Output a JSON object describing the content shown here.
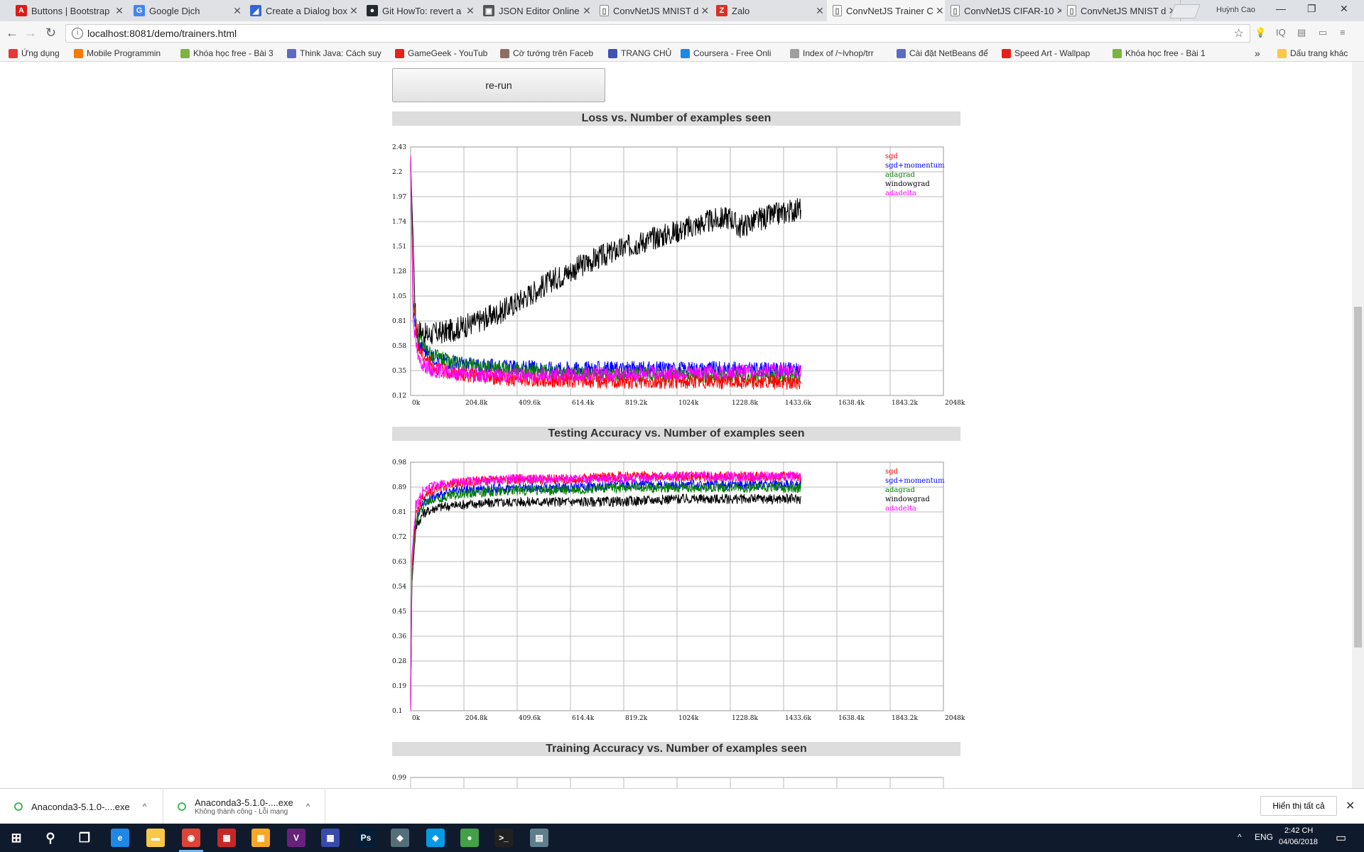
{
  "tabs": [
    {
      "label": "Buttons | Bootstrap",
      "icon": "angular-icon",
      "color": "#dd1b16",
      "glyph": "A",
      "active": false
    },
    {
      "label": "Google Dịch",
      "icon": "google-translate-icon",
      "color": "#4285f4",
      "glyph": "G",
      "active": false
    },
    {
      "label": "Create a Dialog box",
      "icon": "dialog-icon",
      "color": "#3367d6",
      "glyph": "◢",
      "active": false
    },
    {
      "label": "Git HowTo: revert a",
      "icon": "github-icon",
      "color": "#24292e",
      "glyph": "●",
      "active": false
    },
    {
      "label": "JSON Editor Online",
      "icon": "json-editor-icon",
      "color": "#555555",
      "glyph": "▣",
      "active": false
    },
    {
      "label": "ConvNetJS MNIST d",
      "icon": "page-icon",
      "color": "#ffffff",
      "glyph": "▯",
      "active": false
    },
    {
      "label": "Zalo",
      "icon": "zalo-icon",
      "color": "#d93025",
      "glyph": "Z",
      "active": false
    },
    {
      "label": "ConvNetJS Trainer C",
      "icon": "page-icon",
      "color": "#ffffff",
      "glyph": "▯",
      "active": true
    },
    {
      "label": "ConvNetJS CIFAR-10",
      "icon": "page-icon",
      "color": "#ffffff",
      "glyph": "▯",
      "active": false
    },
    {
      "label": "ConvNetJS MNIST d",
      "icon": "page-icon",
      "color": "#ffffff",
      "glyph": "▯",
      "active": false
    }
  ],
  "tab_close": "✕",
  "profile_name": "Huỳnh Cao",
  "window_controls": {
    "minimize": "—",
    "maximize": "❐",
    "close": "✕"
  },
  "toolbar": {
    "back": "←",
    "forward": "→",
    "reload": "↻",
    "url": "localhost:8081/demo/trainers.html",
    "info": "i",
    "star": "☆"
  },
  "extensions": [
    "💡",
    "IQ",
    "▤",
    "▭",
    "≡"
  ],
  "bookmarks": [
    {
      "label": "Ứng dụng",
      "color": "#e53935"
    },
    {
      "label": "Mobile Programmin",
      "color": "#f57c00"
    },
    {
      "label": "Khóa học free - Bài 3",
      "color": "#7cb342"
    },
    {
      "label": "Think Java: Cách suy",
      "color": "#5c6bc0"
    },
    {
      "label": "GameGeek - YouTub",
      "color": "#e62117"
    },
    {
      "label": "Cờ tướng trên Faceb",
      "color": "#8d6e63"
    },
    {
      "label": "TRANG CHỦ",
      "color": "#3f51b5"
    },
    {
      "label": "Coursera - Free Onli",
      "color": "#1e88e5"
    },
    {
      "label": "Index of /~lvhop/trr",
      "color": "#9e9e9e"
    },
    {
      "label": "Cài đặt NetBeans để",
      "color": "#5c6bc0"
    },
    {
      "label": "Speed Art - Wallpap",
      "color": "#e62117"
    },
    {
      "label": "Khóa học free - Bài 1",
      "color": "#7cb342"
    },
    {
      "label": "Dấu trang khác",
      "color": "#f9c846"
    }
  ],
  "bookmarks_overflow": "»",
  "rerun_label": "re-run",
  "charts": [
    {
      "title": "Loss vs. Number of examples seen",
      "chart_data": {
        "type": "line",
        "title": "Loss vs. Number of examples seen",
        "x_ticks": [
          "0k",
          "204.8k",
          "409.6k",
          "614.4k",
          "819.2k",
          "1024k",
          "1228.8k",
          "1433.6k",
          "1638.4k",
          "1843.2k",
          "2048k"
        ],
        "xlim": [
          0,
          2048
        ],
        "ylim": [
          0.12,
          2.43
        ],
        "y_ticks": [
          "2.43",
          "2.2",
          "1.97",
          "1.74",
          "1.51",
          "1.28",
          "1.05",
          "0.81",
          "0.58",
          "0.35",
          "0.12"
        ],
        "grid": true,
        "legend_position": "top-right",
        "series": [
          {
            "name": "sgd",
            "color": "#ff0000",
            "x": [
              0,
              10,
              30,
              80,
              150,
              250,
              400,
              600,
              800,
              1000,
              1200,
              1400,
              1500
            ],
            "y": [
              2.35,
              1.0,
              0.55,
              0.4,
              0.33,
              0.3,
              0.27,
              0.26,
              0.25,
              0.25,
              0.25,
              0.24,
              0.24
            ]
          },
          {
            "name": "sgd+momentum",
            "color": "#0000ff",
            "x": [
              0,
              10,
              30,
              80,
              150,
              250,
              400,
              600,
              800,
              1000,
              1200,
              1400,
              1500
            ],
            "y": [
              2.35,
              0.9,
              0.6,
              0.48,
              0.43,
              0.4,
              0.38,
              0.37,
              0.37,
              0.37,
              0.37,
              0.36,
              0.36
            ]
          },
          {
            "name": "adagrad",
            "color": "#008000",
            "x": [
              0,
              10,
              30,
              80,
              150,
              250,
              400,
              600,
              800,
              1000,
              1200,
              1400,
              1500
            ],
            "y": [
              2.35,
              1.0,
              0.65,
              0.5,
              0.43,
              0.39,
              0.36,
              0.33,
              0.32,
              0.31,
              0.3,
              0.29,
              0.29
            ]
          },
          {
            "name": "windowgrad",
            "color": "#000000",
            "x": [
              0,
              20,
              60,
              150,
              250,
              350,
              450,
              550,
              700,
              850,
              1000,
              1150,
              1230,
              1260,
              1320,
              1400,
              1500
            ],
            "y": [
              2.3,
              0.75,
              0.68,
              0.72,
              0.8,
              0.9,
              1.05,
              1.2,
              1.38,
              1.52,
              1.63,
              1.74,
              1.78,
              1.68,
              1.74,
              1.8,
              1.86
            ]
          },
          {
            "name": "adadelta",
            "color": "#ff00ff",
            "x": [
              0,
              10,
              30,
              80,
              150,
              250,
              400,
              600,
              800,
              1000,
              1200,
              1400,
              1500
            ],
            "y": [
              2.35,
              0.8,
              0.45,
              0.36,
              0.33,
              0.31,
              0.31,
              0.31,
              0.32,
              0.33,
              0.34,
              0.35,
              0.35
            ]
          }
        ]
      }
    },
    {
      "title": "Testing Accuracy vs. Number of examples seen",
      "chart_data": {
        "type": "line",
        "title": "Testing Accuracy vs. Number of examples seen",
        "x_ticks": [
          "0k",
          "204.8k",
          "409.6k",
          "614.4k",
          "819.2k",
          "1024k",
          "1228.8k",
          "1433.6k",
          "1638.4k",
          "1843.2k",
          "2048k"
        ],
        "xlim": [
          0,
          2048
        ],
        "ylim": [
          0.1,
          0.98
        ],
        "y_ticks": [
          "0.98",
          "0.89",
          "0.81",
          "0.72",
          "0.63",
          "0.54",
          "0.45",
          "0.36",
          "0.28",
          "0.19",
          "0.1"
        ],
        "grid": true,
        "legend_position": "top-right",
        "series": [
          {
            "name": "sgd",
            "color": "#ff0000",
            "x": [
              0,
              5,
              20,
              50,
              100,
              200,
              400,
              600,
              800,
              1000,
              1200,
              1400,
              1500
            ],
            "y": [
              0.1,
              0.6,
              0.8,
              0.86,
              0.89,
              0.91,
              0.92,
              0.92,
              0.93,
              0.93,
              0.93,
              0.93,
              0.93
            ]
          },
          {
            "name": "sgd+momentum",
            "color": "#0000ff",
            "x": [
              0,
              5,
              20,
              50,
              100,
              200,
              400,
              600,
              800,
              1000,
              1200,
              1400,
              1500
            ],
            "y": [
              0.1,
              0.6,
              0.78,
              0.84,
              0.86,
              0.88,
              0.89,
              0.89,
              0.9,
              0.9,
              0.9,
              0.9,
              0.9
            ]
          },
          {
            "name": "adagrad",
            "color": "#008000",
            "x": [
              0,
              5,
              20,
              50,
              100,
              200,
              400,
              600,
              800,
              1000,
              1200,
              1400,
              1500
            ],
            "y": [
              0.1,
              0.55,
              0.77,
              0.83,
              0.85,
              0.87,
              0.88,
              0.88,
              0.89,
              0.89,
              0.89,
              0.89,
              0.89
            ]
          },
          {
            "name": "windowgrad",
            "color": "#000000",
            "x": [
              0,
              5,
              20,
              50,
              100,
              200,
              400,
              600,
              800,
              1000,
              1200,
              1400,
              1500
            ],
            "y": [
              0.1,
              0.55,
              0.75,
              0.8,
              0.82,
              0.83,
              0.84,
              0.84,
              0.84,
              0.85,
              0.85,
              0.85,
              0.85
            ]
          },
          {
            "name": "adadelta",
            "color": "#ff00ff",
            "x": [
              0,
              5,
              20,
              50,
              100,
              200,
              400,
              600,
              800,
              1000,
              1200,
              1400,
              1500
            ],
            "y": [
              0.1,
              0.65,
              0.83,
              0.88,
              0.9,
              0.91,
              0.92,
              0.92,
              0.92,
              0.93,
              0.93,
              0.93,
              0.93
            ]
          }
        ]
      }
    },
    {
      "title": "Training Accuracy vs. Number of examples seen",
      "chart_data": {
        "type": "line",
        "title": "Training Accuracy vs. Number of examples seen",
        "y_ticks": [
          "0.99"
        ],
        "grid": true,
        "series": []
      }
    }
  ],
  "downloads": [
    {
      "name": "Anaconda3-5.1.0-....exe",
      "status": ""
    },
    {
      "name": "Anaconda3-5.1.0-....exe",
      "status": "Không thành công - Lỗi mạng"
    }
  ],
  "download_chevron": "^",
  "show_all_label": "Hiển thị tất cả",
  "shelf_close": "✕",
  "taskbar": {
    "apps": [
      {
        "icon": "windows-start-icon",
        "glyph": "⊞",
        "color": "transparent"
      },
      {
        "icon": "search-icon",
        "glyph": "⚲",
        "color": "transparent"
      },
      {
        "icon": "task-view-icon",
        "glyph": "❒",
        "color": "transparent"
      },
      {
        "icon": "internet-explorer-icon",
        "glyph": "e",
        "color": "#1e88e5"
      },
      {
        "icon": "file-explorer-icon",
        "glyph": "▬",
        "color": "#f9c846"
      },
      {
        "icon": "chrome-icon",
        "glyph": "◉",
        "color": "#db4437"
      },
      {
        "icon": "app-icon-1",
        "glyph": "▦",
        "color": "#c62828"
      },
      {
        "icon": "app-icon-2",
        "glyph": "▦",
        "color": "#f9a825"
      },
      {
        "icon": "visual-studio-icon",
        "glyph": "V",
        "color": "#68217a"
      },
      {
        "icon": "app-icon-3",
        "glyph": "▦",
        "color": "#3949ab"
      },
      {
        "icon": "photoshop-icon",
        "glyph": "Ps",
        "color": "#001e36"
      },
      {
        "icon": "app-icon-4",
        "glyph": "◆",
        "color": "#546e7a"
      },
      {
        "icon": "app-icon-5",
        "glyph": "◆",
        "color": "#039be5"
      },
      {
        "icon": "app-icon-6",
        "glyph": "●",
        "color": "#43a047"
      },
      {
        "icon": "terminal-icon",
        "glyph": ">_",
        "color": "#212121"
      },
      {
        "icon": "app-icon-7",
        "glyph": "▤",
        "color": "#607d8b"
      }
    ],
    "tray_up": "^",
    "language": "ENG",
    "time": "2:42 CH",
    "date": "04/06/2018",
    "notification": "▭"
  }
}
